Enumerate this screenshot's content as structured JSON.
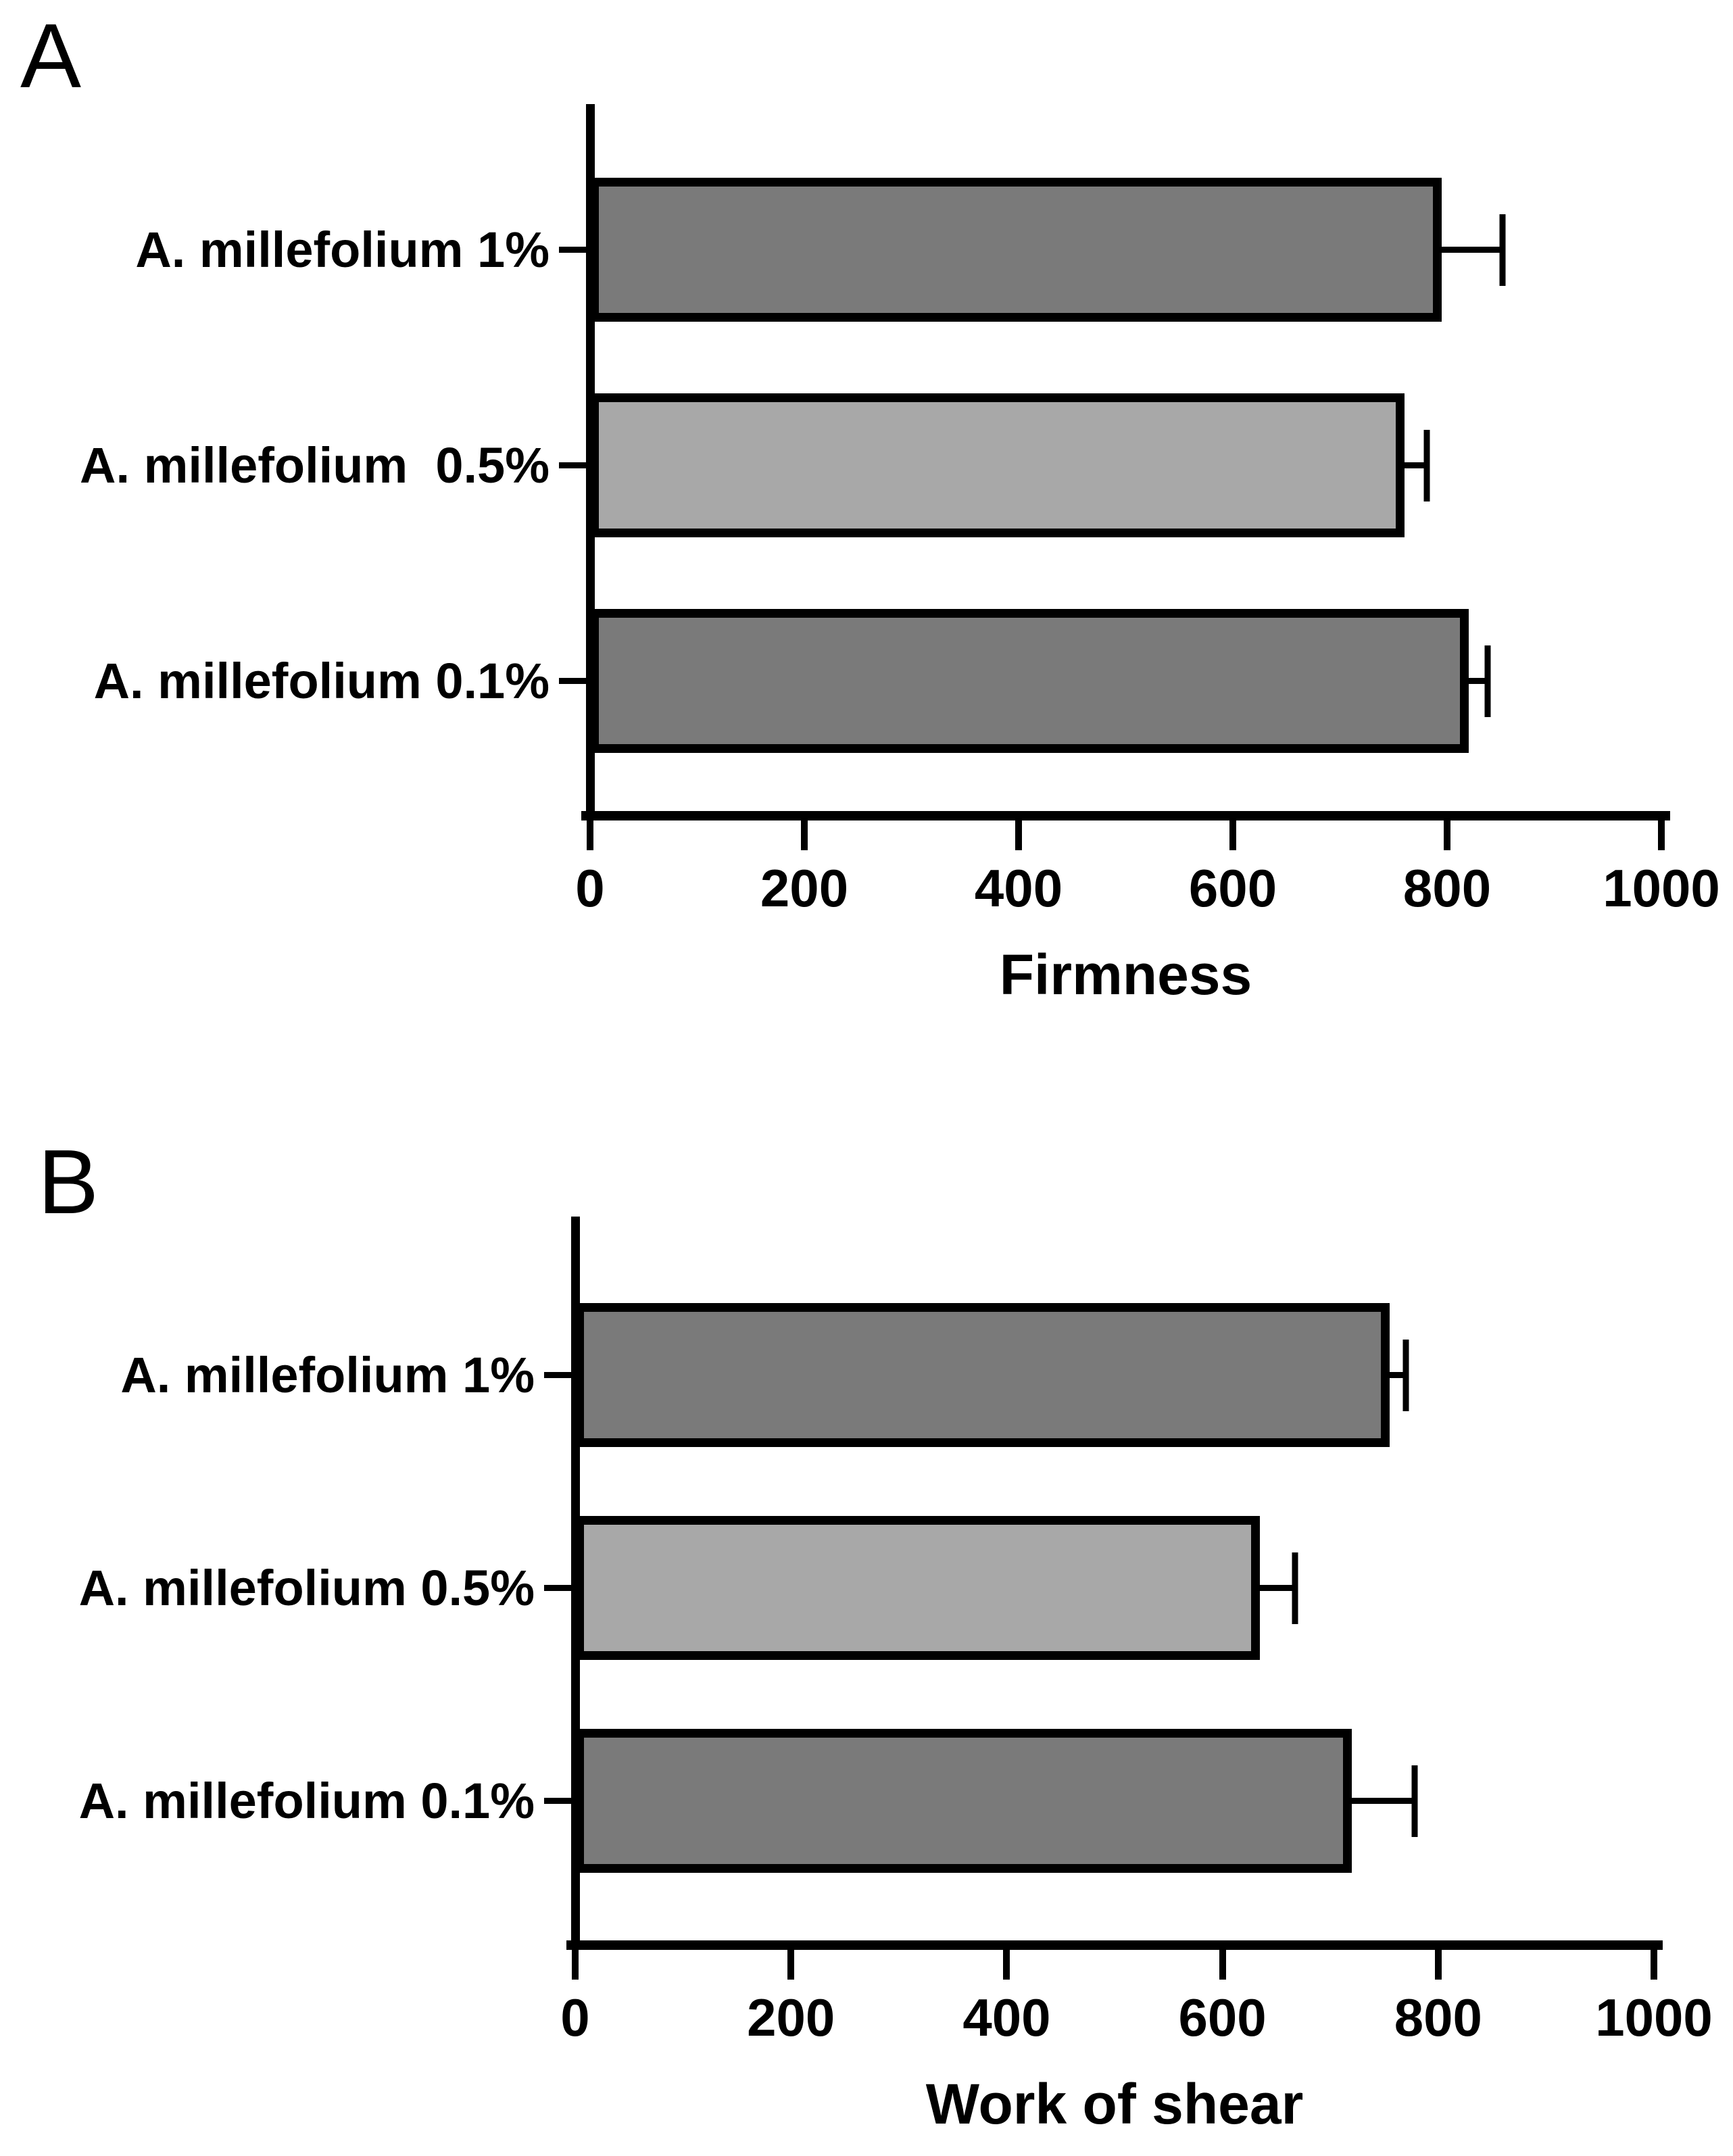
{
  "chart_data": [
    {
      "type": "bar",
      "orientation": "horizontal",
      "panel_letter": "A",
      "xlabel": "Firmness",
      "categories": [
        "A. millefolium 1%",
        "A. millefolium  0.5%",
        "A. millefolium 0.1%"
      ],
      "values": [
        795,
        760,
        820
      ],
      "errors_plus": [
        57,
        21,
        18
      ],
      "bar_colors": [
        "#7a7a7a",
        "#a8a8a8",
        "#7a7a7a"
      ],
      "bar_border_color": "#000000",
      "axis_color": "#000000",
      "xlim": [
        0,
        1000
      ],
      "x_ticks": [
        0,
        200,
        400,
        600,
        800,
        1000
      ],
      "x_tick_labels": [
        "0",
        "200",
        "400",
        "600",
        "800",
        "1000"
      ],
      "grid": false,
      "legend": "none"
    },
    {
      "type": "bar",
      "orientation": "horizontal",
      "panel_letter": "B",
      "xlabel": "Work of shear",
      "categories": [
        "A. millefolium 1%",
        "A. millefolium 0.5%",
        "A. millefolium 0.1%"
      ],
      "values": [
        755,
        635,
        720
      ],
      "errors_plus": [
        15,
        32,
        58
      ],
      "bar_colors": [
        "#7a7a7a",
        "#a8a8a8",
        "#7a7a7a"
      ],
      "bar_border_color": "#000000",
      "axis_color": "#000000",
      "xlim": [
        0,
        1000
      ],
      "x_ticks": [
        0,
        200,
        400,
        600,
        800,
        1000
      ],
      "x_tick_labels": [
        "0",
        "200",
        "400",
        "600",
        "800",
        "1000"
      ],
      "grid": false,
      "legend": "none"
    }
  ]
}
